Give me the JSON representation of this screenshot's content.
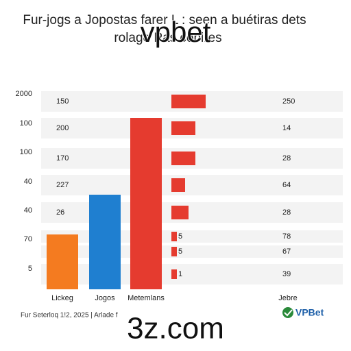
{
  "title": [
    "Fur-jogs a Jopostas farer L : seen a buétiras dets",
    "rolage Pas cobires"
  ],
  "watermark": "vpbet",
  "axis_labels": [
    "2000",
    "100",
    "100",
    "40",
    "40",
    "70",
    "5"
  ],
  "rows": [
    {
      "inner": "150",
      "right": "250",
      "bar": 50,
      "bar_label": null
    },
    {
      "inner": "200",
      "right": "14",
      "bar": 35,
      "bar_label": null
    },
    {
      "inner": "170",
      "right": "28",
      "bar": 35,
      "bar_label": null
    },
    {
      "inner": "227",
      "right": "64",
      "bar": 20,
      "bar_label": null
    },
    {
      "inner": "26",
      "right": "28",
      "bar": 25,
      "bar_label": null
    },
    {
      "inner": null,
      "right": "78",
      "bar": 8,
      "bar_label": "5"
    },
    {
      "inner": null,
      "right": "67",
      "bar": 8,
      "bar_label": "5"
    },
    {
      "inner": null,
      "right": "39",
      "bar": 8,
      "bar_label": "1"
    }
  ],
  "chart_data": {
    "type": "bar",
    "categories": [
      "Lickeg",
      "Jogos",
      "Metemlans"
    ],
    "values": [
      80,
      138,
      250
    ],
    "colors": [
      "#f47b20",
      "#1f7fd0",
      "#e53b2f"
    ],
    "ylim": [
      0,
      250
    ],
    "extra_label": "Jebre"
  },
  "footer": {
    "note": "Fur Seterloq 1!2, 2025 | Arlade f",
    "site": "3z.com",
    "logo": "VPBet"
  }
}
